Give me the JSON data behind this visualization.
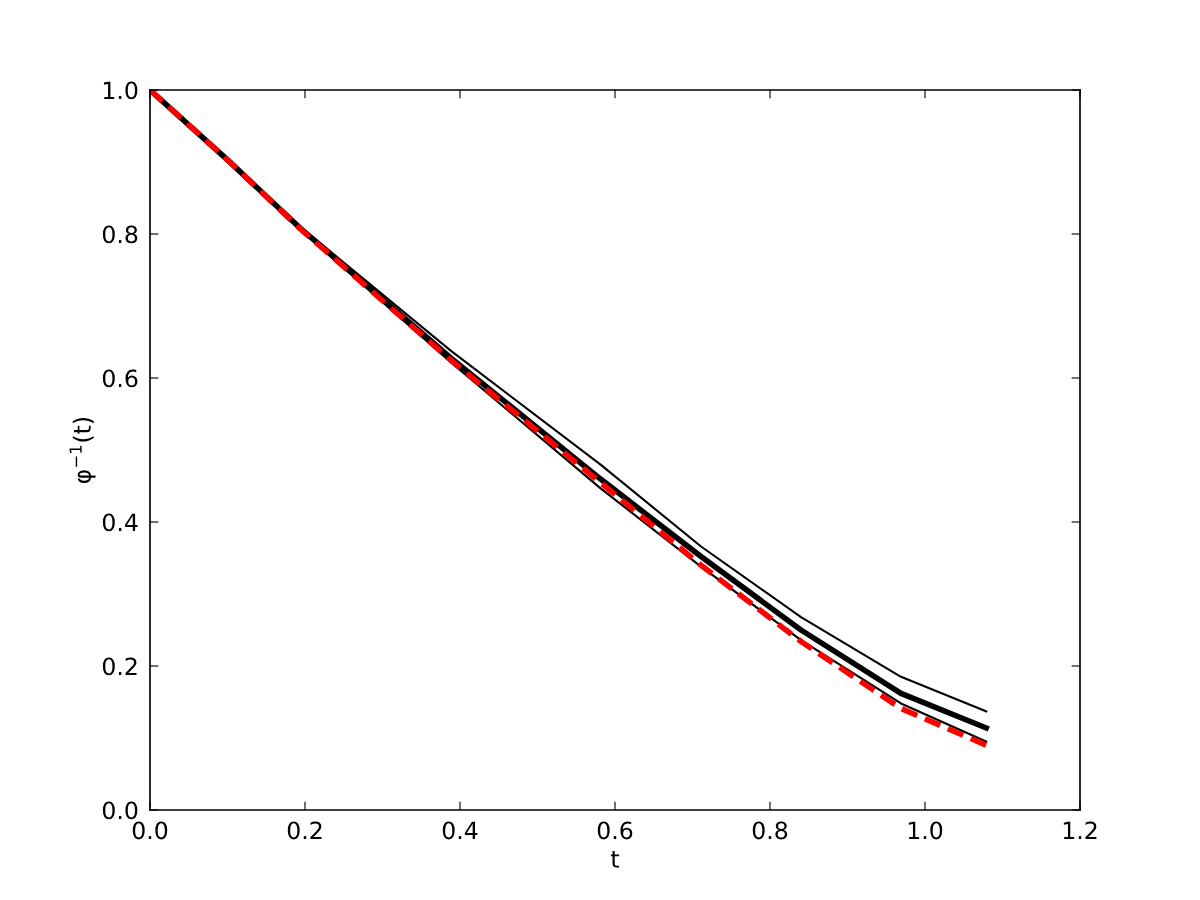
{
  "chart_data": {
    "type": "line",
    "xlabel": "t",
    "ylabel": "φ$^{−1}$(t)",
    "x": [
      0,
      0.1,
      0.194,
      0.388,
      0.581,
      0.711,
      0.84,
      0.969,
      1.079
    ],
    "series": [
      {
        "color": "#000000",
        "values": [
          1,
          0.903,
          0.81,
          0.638,
          0.48,
          0.366,
          0.268,
          0.185,
          0.137
        ]
      },
      {
        "color": "#000000",
        "values": [
          1,
          0.903,
          0.808,
          0.628,
          0.46,
          0.352,
          0.25,
          0.162,
          0.114
        ]
      },
      {
        "color": "#000000",
        "values": [
          1,
          0.903,
          0.806,
          0.622,
          0.447,
          0.338,
          0.236,
          0.148,
          0.095
        ]
      },
      {
        "color": "#ff0000",
        "line_style": "dashed",
        "values": [
          1,
          0.903,
          0.807,
          0.625,
          0.455,
          0.34,
          0.234,
          0.141,
          0.09
        ]
      }
    ],
    "xlim": [
      0,
      1.2
    ],
    "ylim": [
      0,
      1.0
    ],
    "xticks": [
      {
        "value": 0,
        "label": "0.0"
      },
      {
        "value": 0.2,
        "label": "0.2"
      },
      {
        "value": 0.4,
        "label": "0.4"
      },
      {
        "value": 0.6,
        "label": "0.6"
      },
      {
        "value": 0.8,
        "label": "0.8"
      },
      {
        "value": 1.0,
        "label": "1.0"
      },
      {
        "value": 1.2,
        "label": "1.2"
      }
    ],
    "yticks": [
      {
        "value": 0,
        "label": "0.0"
      },
      {
        "value": 0.2,
        "label": "0.2"
      },
      {
        "value": 0.4,
        "label": "0.4"
      },
      {
        "value": 0.6,
        "label": "0.6"
      },
      {
        "value": 0.8,
        "label": "0.8"
      },
      {
        "value": 1.0,
        "label": "1.0"
      }
    ],
    "grid": false,
    "legend": false
  }
}
